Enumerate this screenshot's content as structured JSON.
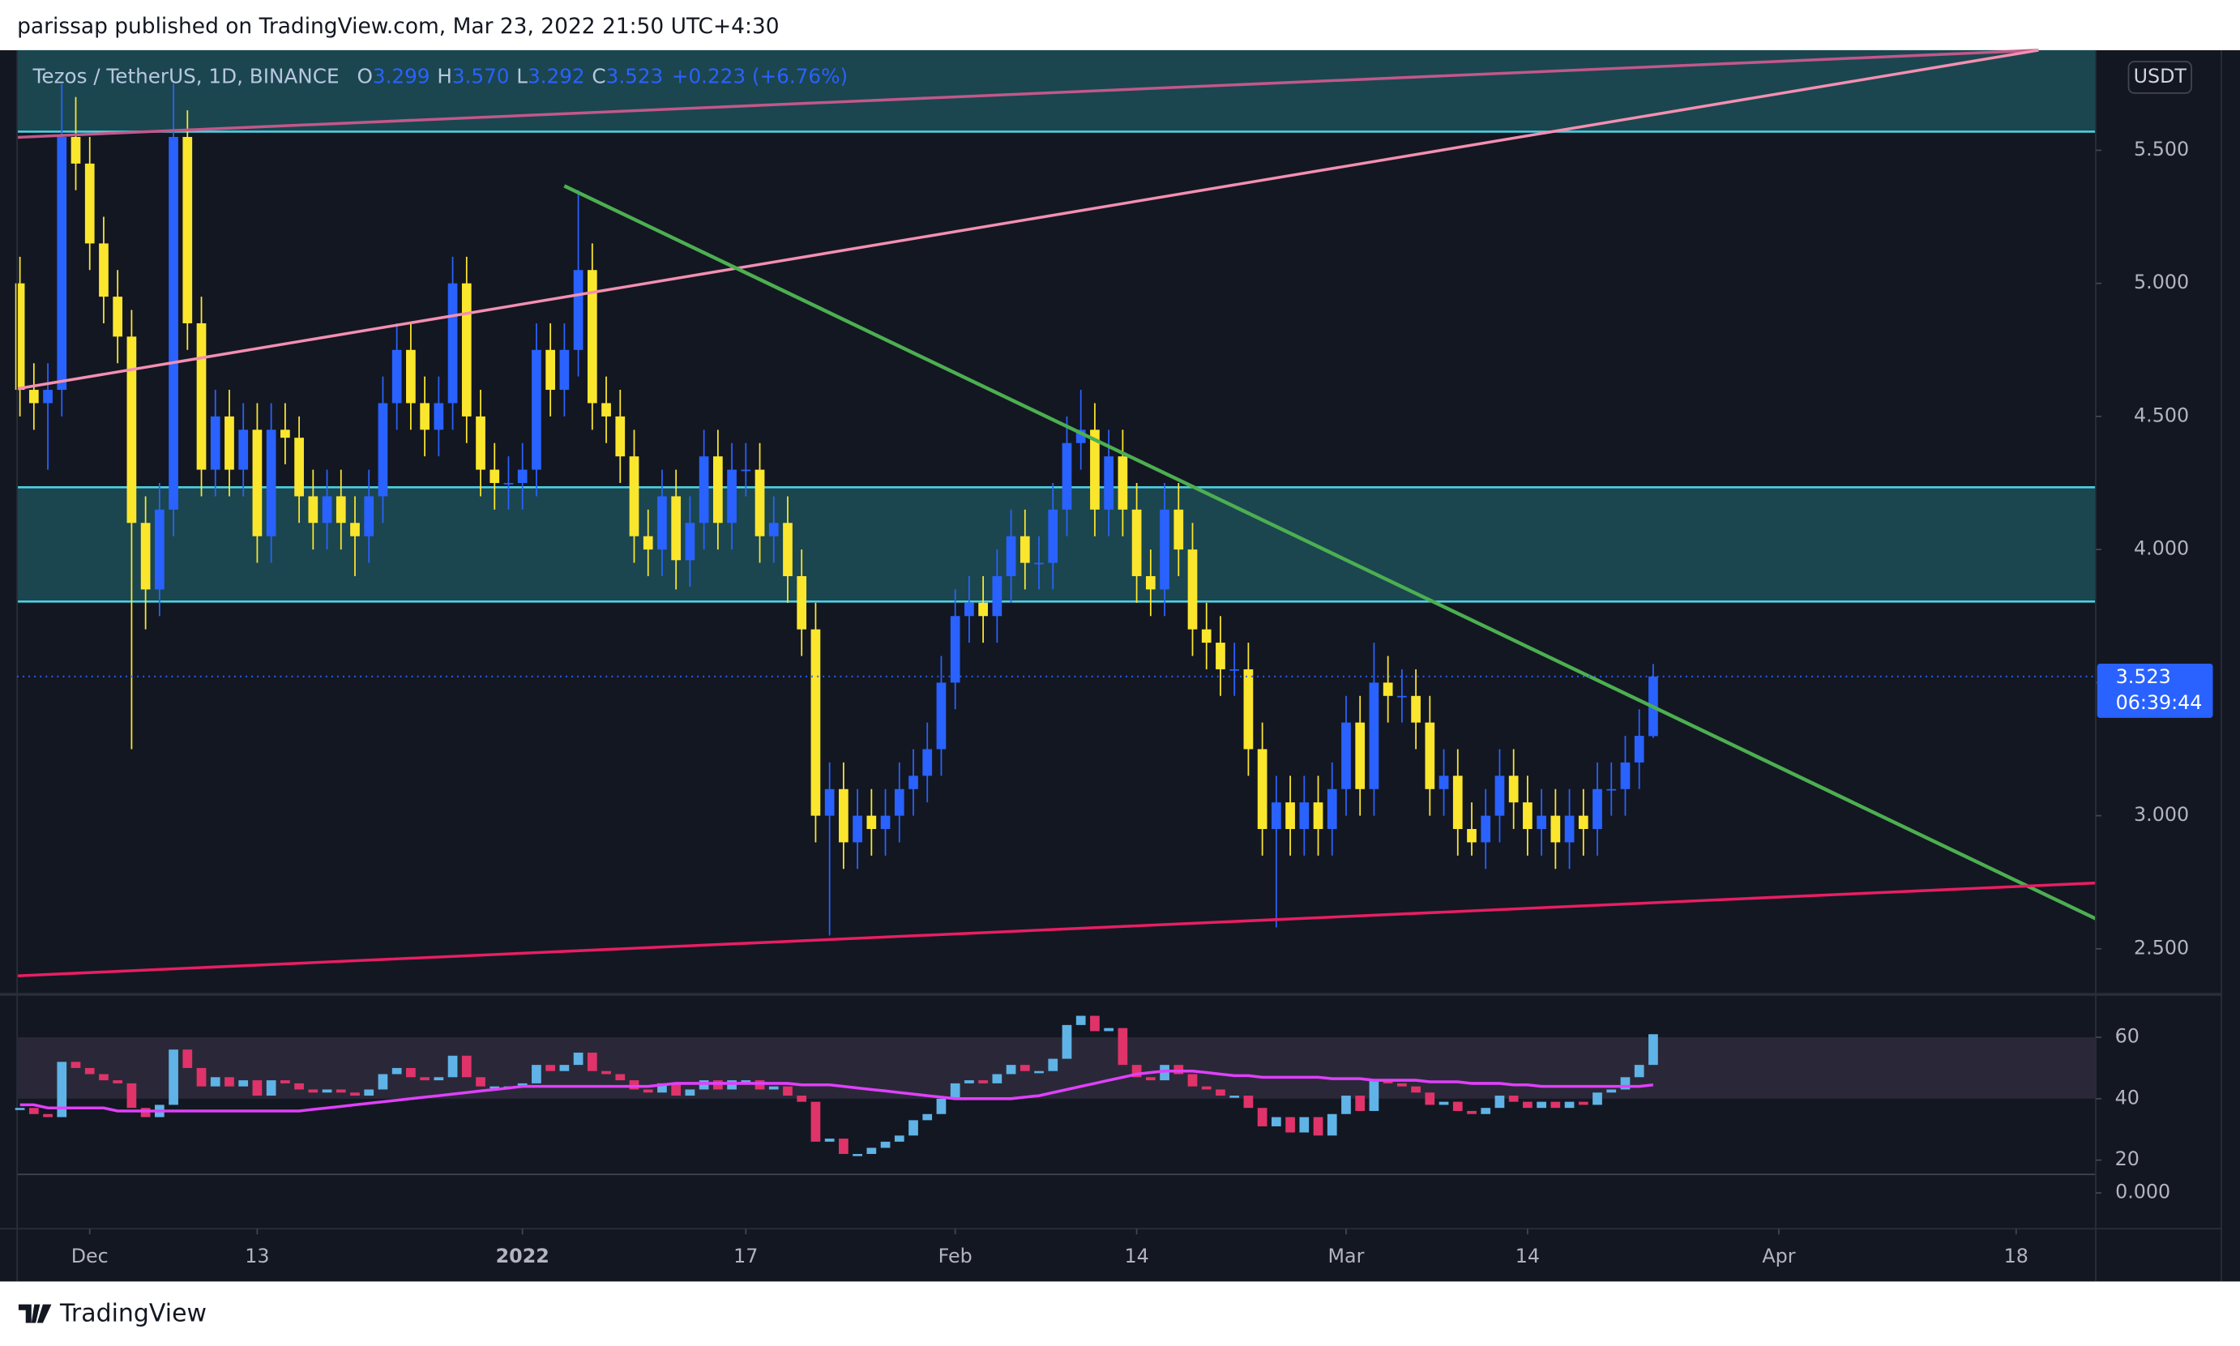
{
  "header": {
    "publisher_line": "parissap published on TradingView.com, Mar 23, 2022 21:50 UTC+4:30",
    "logo_text": "TradingView"
  },
  "chart_data": {
    "type": "candlestick",
    "title": "Tezos / TetherUS, 1D, BINANCE",
    "legend": [
      {
        "label": "O",
        "value": "3.299"
      },
      {
        "label": "H",
        "value": "3.570"
      },
      {
        "label": "L",
        "value": "3.292"
      },
      {
        "label": "C",
        "value": "3.523"
      }
    ],
    "change": "+0.223 (+6.76%)",
    "currency": "USDT",
    "countdown": "06:39:44",
    "up_color": "#2962ff",
    "down_color": "#fbe62e",
    "x": [
      0,
      1,
      2,
      3,
      4,
      5,
      6,
      7,
      8,
      9,
      10,
      11,
      12,
      13,
      14,
      15,
      16,
      17,
      18,
      19,
      20,
      21,
      22,
      23,
      24,
      25,
      26,
      27,
      28,
      29,
      30,
      31,
      32,
      33,
      34,
      35,
      36,
      37,
      38,
      39,
      40,
      41,
      42,
      43,
      44,
      45,
      46,
      47,
      48,
      49,
      50,
      51,
      52,
      53,
      54,
      55,
      56,
      57,
      58,
      59,
      60,
      61,
      62,
      63,
      64,
      65,
      66,
      67,
      68,
      69,
      70,
      71,
      72,
      73,
      74,
      75,
      76,
      77,
      78,
      79,
      80,
      81,
      82,
      83,
      84,
      85,
      86,
      87,
      88,
      89,
      90,
      91,
      92,
      93,
      94,
      95,
      96,
      97,
      98,
      99,
      100,
      101,
      102,
      103,
      104,
      105,
      106,
      107,
      108,
      109,
      110,
      111,
      112,
      113,
      114,
      115,
      116,
      117
    ],
    "open": [
      5.0,
      4.6,
      4.55,
      4.6,
      5.55,
      5.45,
      5.15,
      4.95,
      4.8,
      4.1,
      3.85,
      4.15,
      5.55,
      4.85,
      4.3,
      4.5,
      4.3,
      4.45,
      4.05,
      4.45,
      4.42,
      4.2,
      4.1,
      4.2,
      4.1,
      4.05,
      4.2,
      4.55,
      4.75,
      4.55,
      4.45,
      4.55,
      5.0,
      4.5,
      4.3,
      4.25,
      4.25,
      4.3,
      4.75,
      4.6,
      4.75,
      5.05,
      4.55,
      4.5,
      4.35,
      4.05,
      4.0,
      4.2,
      3.96,
      4.1,
      4.35,
      4.1,
      4.3,
      4.3,
      4.05,
      4.1,
      3.9,
      3.7,
      3.0,
      3.1,
      2.9,
      3.0,
      2.95,
      3.0,
      3.1,
      3.15,
      3.25,
      3.5,
      3.75,
      3.8,
      3.75,
      3.9,
      4.05,
      3.95,
      3.95,
      4.15,
      4.4,
      4.45,
      4.15,
      4.35,
      4.15,
      3.9,
      3.85,
      4.15,
      4.0,
      3.7,
      3.65,
      3.55,
      3.55,
      3.25,
      2.95,
      3.05,
      2.95,
      3.05,
      2.95,
      3.1,
      3.35,
      3.1,
      3.5,
      3.45,
      3.45,
      3.35,
      3.1,
      3.15,
      2.95,
      2.9,
      3.0,
      3.15,
      3.05,
      2.95,
      3.0,
      2.9,
      3.0,
      2.95,
      3.1,
      3.1,
      3.2,
      3.299
    ],
    "high": [
      5.1,
      4.7,
      4.7,
      5.75,
      5.7,
      5.55,
      5.25,
      5.05,
      4.9,
      4.2,
      4.25,
      5.75,
      5.65,
      4.95,
      4.6,
      4.6,
      4.55,
      4.55,
      4.55,
      4.55,
      4.5,
      4.3,
      4.3,
      4.3,
      4.2,
      4.3,
      4.65,
      4.85,
      4.85,
      4.65,
      4.65,
      5.1,
      5.1,
      4.6,
      4.4,
      4.35,
      4.4,
      4.85,
      4.85,
      4.85,
      5.35,
      5.15,
      4.65,
      4.6,
      4.45,
      4.15,
      4.3,
      4.3,
      4.2,
      4.45,
      4.45,
      4.4,
      4.4,
      4.4,
      4.2,
      4.2,
      4.0,
      3.8,
      3.2,
      3.2,
      3.1,
      3.1,
      3.1,
      3.2,
      3.25,
      3.35,
      3.6,
      3.85,
      3.9,
      3.9,
      4.0,
      4.15,
      4.15,
      4.05,
      4.25,
      4.5,
      4.6,
      4.55,
      4.45,
      4.45,
      4.25,
      4.0,
      4.25,
      4.25,
      4.1,
      3.8,
      3.75,
      3.65,
      3.65,
      3.35,
      3.15,
      3.15,
      3.15,
      3.15,
      3.2,
      3.45,
      3.45,
      3.65,
      3.6,
      3.55,
      3.55,
      3.45,
      3.25,
      3.25,
      3.05,
      3.1,
      3.25,
      3.25,
      3.15,
      3.1,
      3.1,
      3.1,
      3.1,
      3.2,
      3.2,
      3.3,
      3.4,
      3.57
    ],
    "low": [
      4.5,
      4.45,
      4.3,
      4.5,
      5.35,
      5.05,
      4.85,
      4.7,
      3.25,
      3.7,
      3.75,
      4.05,
      4.75,
      4.2,
      4.2,
      4.2,
      4.2,
      3.95,
      3.95,
      4.32,
      4.1,
      4.0,
      4.0,
      4.0,
      3.9,
      3.95,
      4.1,
      4.45,
      4.45,
      4.35,
      4.35,
      4.45,
      4.4,
      4.2,
      4.15,
      4.15,
      4.15,
      4.2,
      4.5,
      4.5,
      4.65,
      4.45,
      4.4,
      4.25,
      3.95,
      3.9,
      3.9,
      3.85,
      3.86,
      4.0,
      4.0,
      4.0,
      4.2,
      3.95,
      3.95,
      3.8,
      3.6,
      2.9,
      2.55,
      2.8,
      2.8,
      2.85,
      2.85,
      2.9,
      3.0,
      3.05,
      3.15,
      3.4,
      3.65,
      3.65,
      3.65,
      3.8,
      3.85,
      3.85,
      3.85,
      4.05,
      4.3,
      4.05,
      4.05,
      4.05,
      3.8,
      3.75,
      3.75,
      3.9,
      3.6,
      3.55,
      3.45,
      3.45,
      3.15,
      2.85,
      2.58,
      2.85,
      2.85,
      2.85,
      2.85,
      3.0,
      3.0,
      3.0,
      3.35,
      3.35,
      3.25,
      3.0,
      3.0,
      2.85,
      2.85,
      2.8,
      2.9,
      2.95,
      2.85,
      2.85,
      2.8,
      2.8,
      2.85,
      2.85,
      3.0,
      3.0,
      3.1,
      3.292
    ],
    "close": [
      4.6,
      4.55,
      4.6,
      5.55,
      5.45,
      5.15,
      4.95,
      4.8,
      4.1,
      3.85,
      4.15,
      5.55,
      4.85,
      4.3,
      4.5,
      4.3,
      4.45,
      4.05,
      4.45,
      4.42,
      4.2,
      4.1,
      4.2,
      4.1,
      4.05,
      4.2,
      4.55,
      4.75,
      4.55,
      4.45,
      4.55,
      5.0,
      4.5,
      4.3,
      4.25,
      4.25,
      4.3,
      4.75,
      4.6,
      4.75,
      5.05,
      4.55,
      4.5,
      4.35,
      4.05,
      4.0,
      4.2,
      3.96,
      4.1,
      4.35,
      4.1,
      4.3,
      4.3,
      4.05,
      4.1,
      3.9,
      3.7,
      3.0,
      3.1,
      2.9,
      3.0,
      2.95,
      3.0,
      3.1,
      3.15,
      3.25,
      3.5,
      3.75,
      3.8,
      3.75,
      3.9,
      4.05,
      3.95,
      3.95,
      4.15,
      4.4,
      4.45,
      4.15,
      4.35,
      4.15,
      3.9,
      3.85,
      4.15,
      4.0,
      3.7,
      3.65,
      3.55,
      3.55,
      3.25,
      2.95,
      3.05,
      2.95,
      3.05,
      2.95,
      3.1,
      3.35,
      3.1,
      3.5,
      3.45,
      3.45,
      3.35,
      3.1,
      3.15,
      2.95,
      2.9,
      3.0,
      3.15,
      3.05,
      2.95,
      3.0,
      2.9,
      3.0,
      2.95,
      3.1,
      3.1,
      3.2,
      3.3,
      3.523
    ],
    "xlim": [
      -0.2,
      148.7
    ],
    "xticks": [
      {
        "value": 5,
        "label": "Dec"
      },
      {
        "value": 17,
        "label": "13"
      },
      {
        "value": 36,
        "label": "2022"
      },
      {
        "value": 52,
        "label": "17"
      },
      {
        "value": 67,
        "label": "Feb"
      },
      {
        "value": 80,
        "label": "14"
      },
      {
        "value": 95,
        "label": "Mar"
      },
      {
        "value": 108,
        "label": "14"
      },
      {
        "value": 126,
        "label": "Apr"
      },
      {
        "value": 143,
        "label": "18"
      }
    ],
    "ylim": [
      2.334,
      5.876
    ],
    "yticks": [
      {
        "value": 2.5,
        "label": "2.500"
      },
      {
        "value": 3,
        "label": "3.000"
      },
      {
        "value": 3.5,
        "label": "3.500"
      },
      {
        "value": 4,
        "label": "4.000"
      },
      {
        "value": 4.5,
        "label": "4.500"
      },
      {
        "value": 5,
        "label": "5.000"
      },
      {
        "value": 5.5,
        "label": "5.500"
      }
    ],
    "rsi": {
      "values": [
        37,
        35,
        34,
        52,
        50,
        48,
        46,
        45,
        37,
        34,
        38,
        56,
        50,
        44,
        47,
        44,
        46,
        41,
        46,
        45,
        43,
        42,
        43,
        42,
        41,
        43,
        48,
        50,
        47,
        46,
        47,
        54,
        47,
        44,
        44,
        44,
        45,
        51,
        49,
        51,
        55,
        49,
        48,
        46,
        43,
        42,
        45,
        41,
        43,
        46,
        43,
        46,
        46,
        43,
        44,
        41,
        39,
        26,
        27,
        22,
        22,
        24,
        26,
        28,
        33,
        35,
        40,
        45,
        46,
        45,
        48,
        51,
        49,
        49,
        53,
        64,
        67,
        62,
        63,
        51,
        47,
        46,
        51,
        48,
        44,
        43,
        41,
        41,
        37,
        31,
        34,
        29,
        34,
        28,
        35,
        41,
        36,
        46,
        45,
        44,
        42,
        38,
        39,
        36,
        35,
        37,
        41,
        39,
        37,
        39,
        37,
        39,
        38,
        42,
        43,
        47,
        51,
        61
      ],
      "ma": [
        38,
        38,
        37,
        37,
        37,
        37,
        37,
        36,
        36,
        36,
        36,
        36,
        36,
        36,
        36,
        36,
        36,
        36,
        36,
        36,
        36,
        36.5,
        37,
        37.5,
        38,
        38.5,
        39,
        39.5,
        40,
        40.5,
        41,
        41.5,
        42,
        42.5,
        43,
        43.5,
        44,
        44,
        44,
        44,
        44,
        44,
        44,
        44,
        44,
        44,
        44.5,
        45,
        45,
        45,
        45,
        45,
        45,
        45,
        45,
        45,
        44.5,
        44.5,
        44.5,
        44,
        43.5,
        43,
        42.5,
        42,
        41.5,
        41,
        40.5,
        40,
        40,
        40,
        40,
        40,
        40.5,
        41,
        42,
        43,
        44,
        45,
        46,
        47,
        48,
        48.5,
        49,
        49,
        49,
        48.5,
        48,
        47.5,
        47.5,
        47,
        47,
        47,
        47,
        47,
        46.5,
        46.5,
        46.5,
        46,
        46,
        46,
        46,
        45.5,
        45.5,
        45.5,
        45,
        45,
        45,
        44.5,
        44.5,
        44,
        44,
        44,
        44,
        44,
        44,
        44,
        44,
        44.5
      ],
      "up_color": "#5fb3e6",
      "down_color": "#e0336a",
      "ma_color": "#e040fb",
      "band": [
        40,
        60
      ],
      "ylim": [
        15.35,
        73.5
      ],
      "yticks": [
        20,
        40,
        60
      ]
    },
    "lower_pane_tick": {
      "value": 0,
      "label": "0.000"
    }
  }
}
